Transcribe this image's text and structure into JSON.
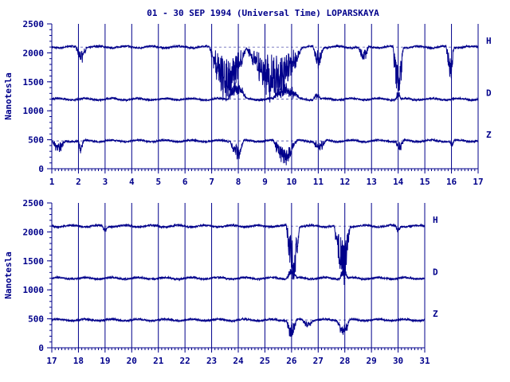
{
  "title": "01 - 30 SEP 1994 (Universal Time) LOPARSKAYA",
  "colors": {
    "ink": "#00008b",
    "baseline": "#00008b"
  },
  "chart_data": [
    {
      "type": "line",
      "ylabel": "Nanotesla",
      "ylim": [
        0,
        2500
      ],
      "yticks": [
        "0",
        "500",
        "1000",
        "1500",
        "2000",
        "2500"
      ],
      "xlim": [
        1,
        17
      ],
      "xticks": [
        "1",
        "2",
        "3",
        "4",
        "5",
        "6",
        "7",
        "8",
        "9",
        "10",
        "11",
        "12",
        "13",
        "14",
        "15",
        "16",
        "17"
      ],
      "grid": "vertical day lines",
      "series": [
        {
          "name": "H",
          "baseline": 2100,
          "events": [
            [
              1.9,
              2.3,
              180
            ],
            [
              6.9,
              8.3,
              650
            ],
            [
              8.3,
              10.4,
              650
            ],
            [
              10.8,
              11.2,
              250
            ],
            [
              12.5,
              12.9,
              180
            ],
            [
              13.8,
              14.2,
              650
            ],
            [
              15.8,
              16.1,
              400
            ]
          ]
        },
        {
          "name": "D",
          "baseline": 1200,
          "events": [
            [
              7.6,
              8.3,
              220
            ],
            [
              9.3,
              10.3,
              200
            ],
            [
              10.8,
              11.1,
              80
            ],
            [
              13.9,
              14.1,
              100
            ]
          ]
        },
        {
          "name": "Z",
          "baseline": 480,
          "events": [
            [
              1.0,
              1.5,
              150
            ],
            [
              2.0,
              2.2,
              160
            ],
            [
              7.7,
              8.2,
              250
            ],
            [
              9.3,
              10.2,
              280
            ],
            [
              10.8,
              11.3,
              120
            ],
            [
              13.9,
              14.2,
              140
            ],
            [
              15.9,
              16.1,
              80
            ]
          ]
        }
      ]
    },
    {
      "type": "line",
      "ylabel": "Nanotesla",
      "ylim": [
        0,
        2500
      ],
      "yticks": [
        "0",
        "500",
        "1000",
        "1500",
        "2000",
        "2500"
      ],
      "xlim": [
        17,
        31
      ],
      "xticks": [
        "17",
        "18",
        "19",
        "20",
        "21",
        "22",
        "23",
        "24",
        "25",
        "26",
        "27",
        "28",
        "29",
        "30",
        "31"
      ],
      "grid": "vertical day lines",
      "series": [
        {
          "name": "H",
          "baseline": 2100,
          "events": [
            [
              25.8,
              26.3,
              700
            ],
            [
              27.6,
              28.2,
              700
            ],
            [
              18.9,
              19.1,
              80
            ],
            [
              29.9,
              30.1,
              80
            ]
          ]
        },
        {
          "name": "D",
          "baseline": 1200,
          "events": [
            [
              25.8,
              26.2,
              120
            ],
            [
              27.8,
              28.1,
              150
            ]
          ]
        },
        {
          "name": "Z",
          "baseline": 480,
          "events": [
            [
              25.8,
              26.2,
              220
            ],
            [
              26.4,
              26.8,
              90
            ],
            [
              27.7,
              28.2,
              200
            ]
          ]
        }
      ]
    }
  ]
}
